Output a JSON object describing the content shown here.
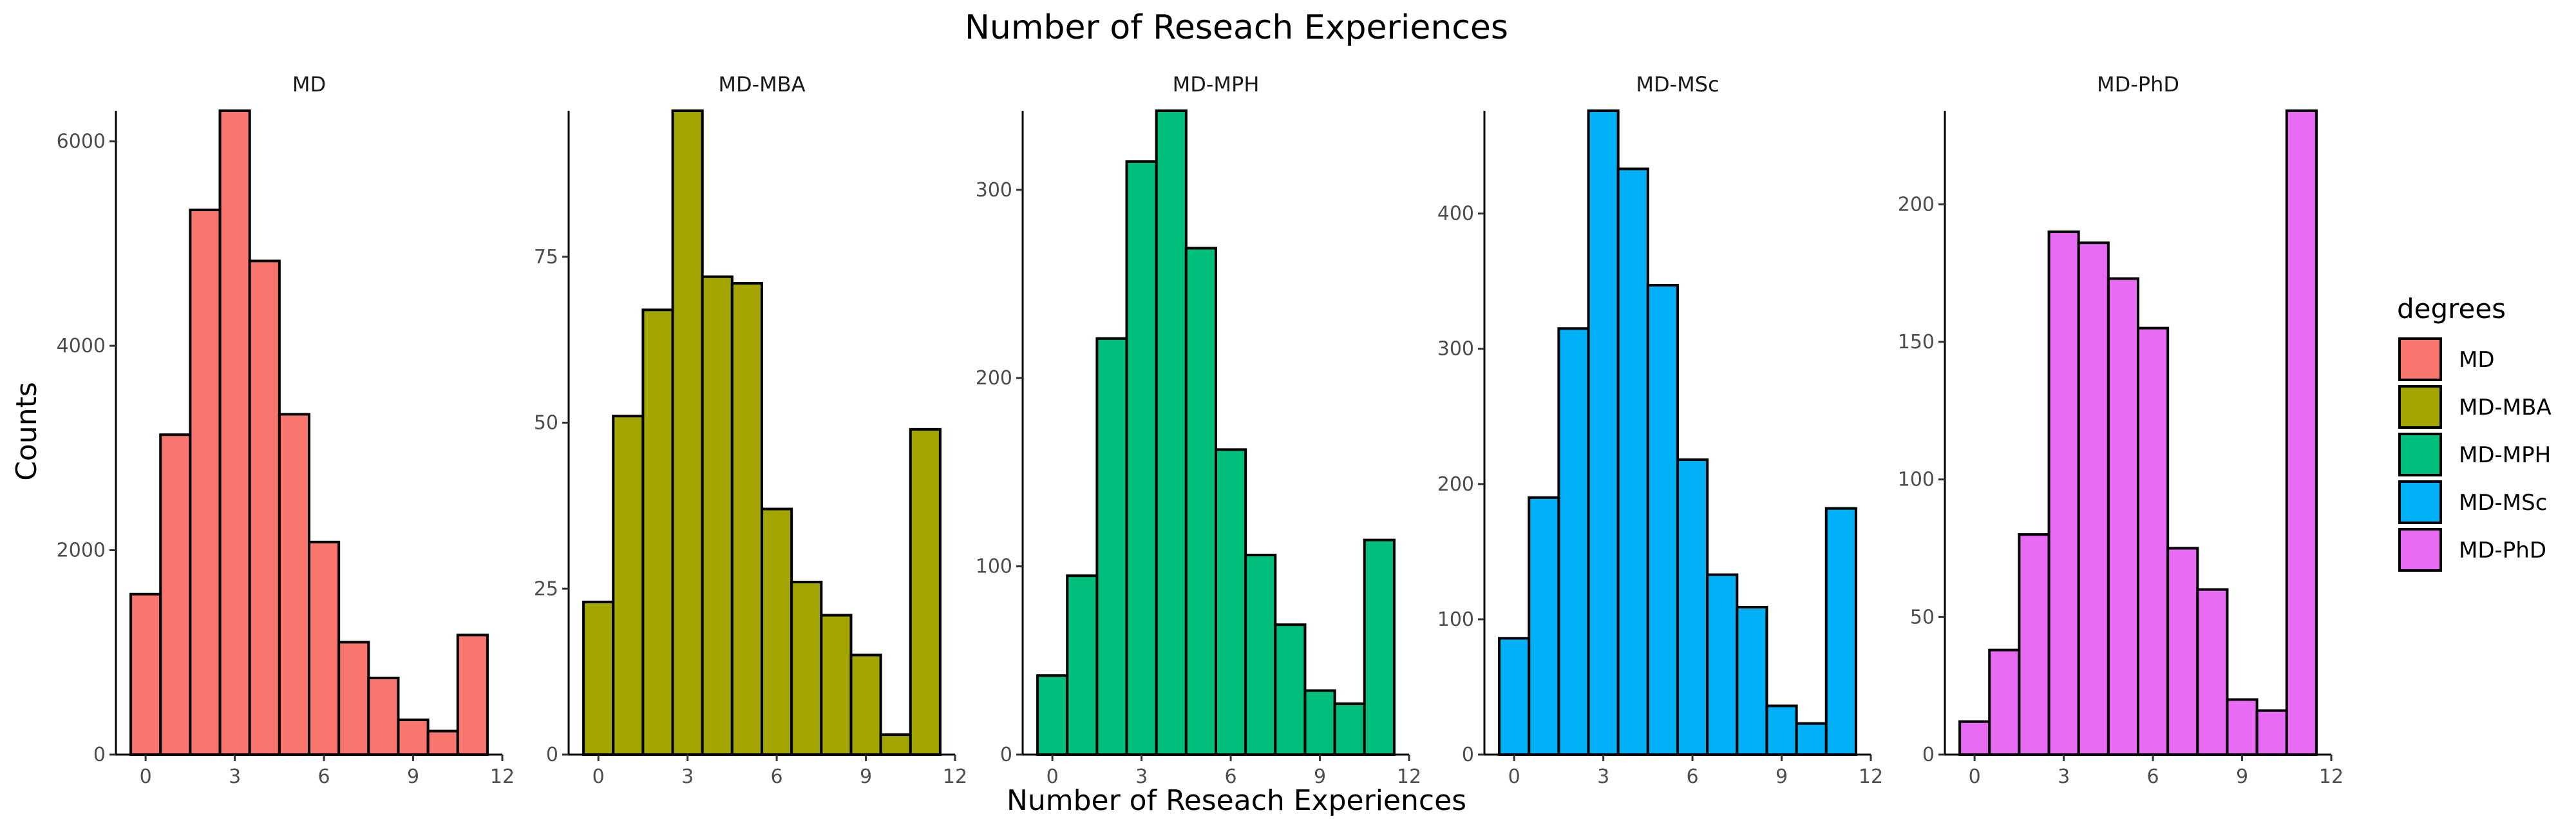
{
  "title": "Number of Reseach Experiences",
  "xlabel": "Number of Reseach Experiences",
  "ylabel": "Counts",
  "legend": {
    "title": "degrees",
    "items": [
      {
        "label": "MD",
        "color": "#F8766D"
      },
      {
        "label": "MD-MBA",
        "color": "#A3A500"
      },
      {
        "label": "MD-MPH",
        "color": "#00BF7D"
      },
      {
        "label": "MD-MSc",
        "color": "#00B0F6"
      },
      {
        "label": "MD-PhD",
        "color": "#E76BF3"
      }
    ]
  },
  "chart_data": [
    {
      "type": "bar",
      "panel": "MD",
      "color": "#F8766D",
      "x": [
        0,
        1,
        2,
        3,
        4,
        5,
        6,
        7,
        8,
        9,
        10,
        11
      ],
      "values": [
        1570,
        3130,
        5330,
        6300,
        4830,
        3330,
        2080,
        1100,
        750,
        340,
        230,
        1170
      ],
      "xlim": [
        -1,
        12
      ],
      "xticks": [
        0,
        3,
        6,
        9,
        12
      ],
      "ylim": [
        0,
        6300
      ],
      "yticks": [
        0,
        2000,
        4000,
        6000
      ]
    },
    {
      "type": "bar",
      "panel": "MD-MBA",
      "color": "#A3A500",
      "x": [
        0,
        1,
        2,
        3,
        4,
        5,
        6,
        7,
        8,
        9,
        10,
        11
      ],
      "values": [
        23,
        51,
        67,
        97,
        72,
        71,
        37,
        26,
        21,
        15,
        3,
        49
      ],
      "xlim": [
        -1,
        12
      ],
      "xticks": [
        0,
        3,
        6,
        9,
        12
      ],
      "ylim": [
        0,
        97
      ],
      "yticks": [
        0,
        25,
        50,
        75
      ]
    },
    {
      "type": "bar",
      "panel": "MD-MPH",
      "color": "#00BF7D",
      "x": [
        0,
        1,
        2,
        3,
        4,
        5,
        6,
        7,
        8,
        9,
        10,
        11
      ],
      "values": [
        42,
        95,
        221,
        315,
        342,
        269,
        162,
        106,
        69,
        34,
        27,
        114
      ],
      "xlim": [
        -1,
        12
      ],
      "xticks": [
        0,
        3,
        6,
        9,
        12
      ],
      "ylim": [
        0,
        342
      ],
      "yticks": [
        0,
        100,
        200,
        300
      ]
    },
    {
      "type": "bar",
      "panel": "MD-MSc",
      "color": "#00B0F6",
      "x": [
        0,
        1,
        2,
        3,
        4,
        5,
        6,
        7,
        8,
        9,
        10,
        11
      ],
      "values": [
        86,
        190,
        315,
        476,
        433,
        347,
        218,
        133,
        109,
        36,
        23,
        182
      ],
      "xlim": [
        -1,
        12
      ],
      "xticks": [
        0,
        3,
        6,
        9,
        12
      ],
      "ylim": [
        0,
        476
      ],
      "yticks": [
        0,
        100,
        200,
        300,
        400
      ]
    },
    {
      "type": "bar",
      "panel": "MD-PhD",
      "color": "#E76BF3",
      "x": [
        0,
        1,
        2,
        3,
        4,
        5,
        6,
        7,
        8,
        9,
        10,
        11
      ],
      "values": [
        12,
        38,
        80,
        190,
        186,
        173,
        155,
        75,
        60,
        20,
        16,
        234
      ],
      "xlim": [
        -1,
        12
      ],
      "xticks": [
        0,
        3,
        6,
        9,
        12
      ],
      "ylim": [
        0,
        234
      ],
      "yticks": [
        0,
        50,
        100,
        150,
        200
      ]
    }
  ]
}
